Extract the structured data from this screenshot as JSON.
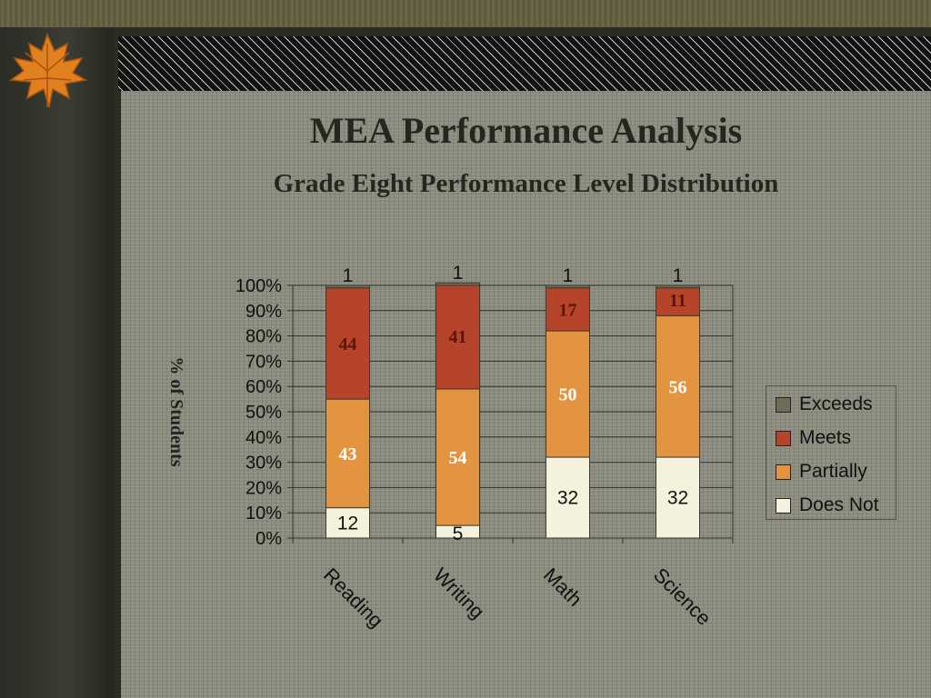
{
  "colors": {
    "exceeds": "#6e6b57",
    "meets": "#b5442a",
    "partially": "#e39440",
    "does_not": "#f4f1dc"
  },
  "slide": {
    "title": "MEA Performance Analysis",
    "subtitle": "Grade Eight  Performance Level Distribution",
    "decoration": "maple-leaf-icon"
  },
  "chart_data": {
    "type": "bar",
    "stacked": true,
    "categories": [
      "Reading",
      "Writing",
      "Math",
      "Science"
    ],
    "ylabel": "% of Students",
    "ylim": [
      0,
      100
    ],
    "yticks": [
      "0%",
      "10%",
      "20%",
      "30%",
      "40%",
      "50%",
      "60%",
      "70%",
      "80%",
      "90%",
      "100%"
    ],
    "legend_position": "right",
    "series": [
      {
        "name": "Does Not",
        "values": [
          12,
          5,
          32,
          32
        ]
      },
      {
        "name": "Partially",
        "values": [
          43,
          54,
          50,
          56
        ]
      },
      {
        "name": "Meets",
        "values": [
          44,
          41,
          17,
          11
        ]
      },
      {
        "name": "Exceeds",
        "values": [
          1,
          1,
          1,
          1
        ]
      }
    ]
  },
  "legend": {
    "items": [
      {
        "label": "Exceeds"
      },
      {
        "label": "Meets"
      },
      {
        "label": "Partially"
      },
      {
        "label": "Does Not"
      }
    ]
  }
}
